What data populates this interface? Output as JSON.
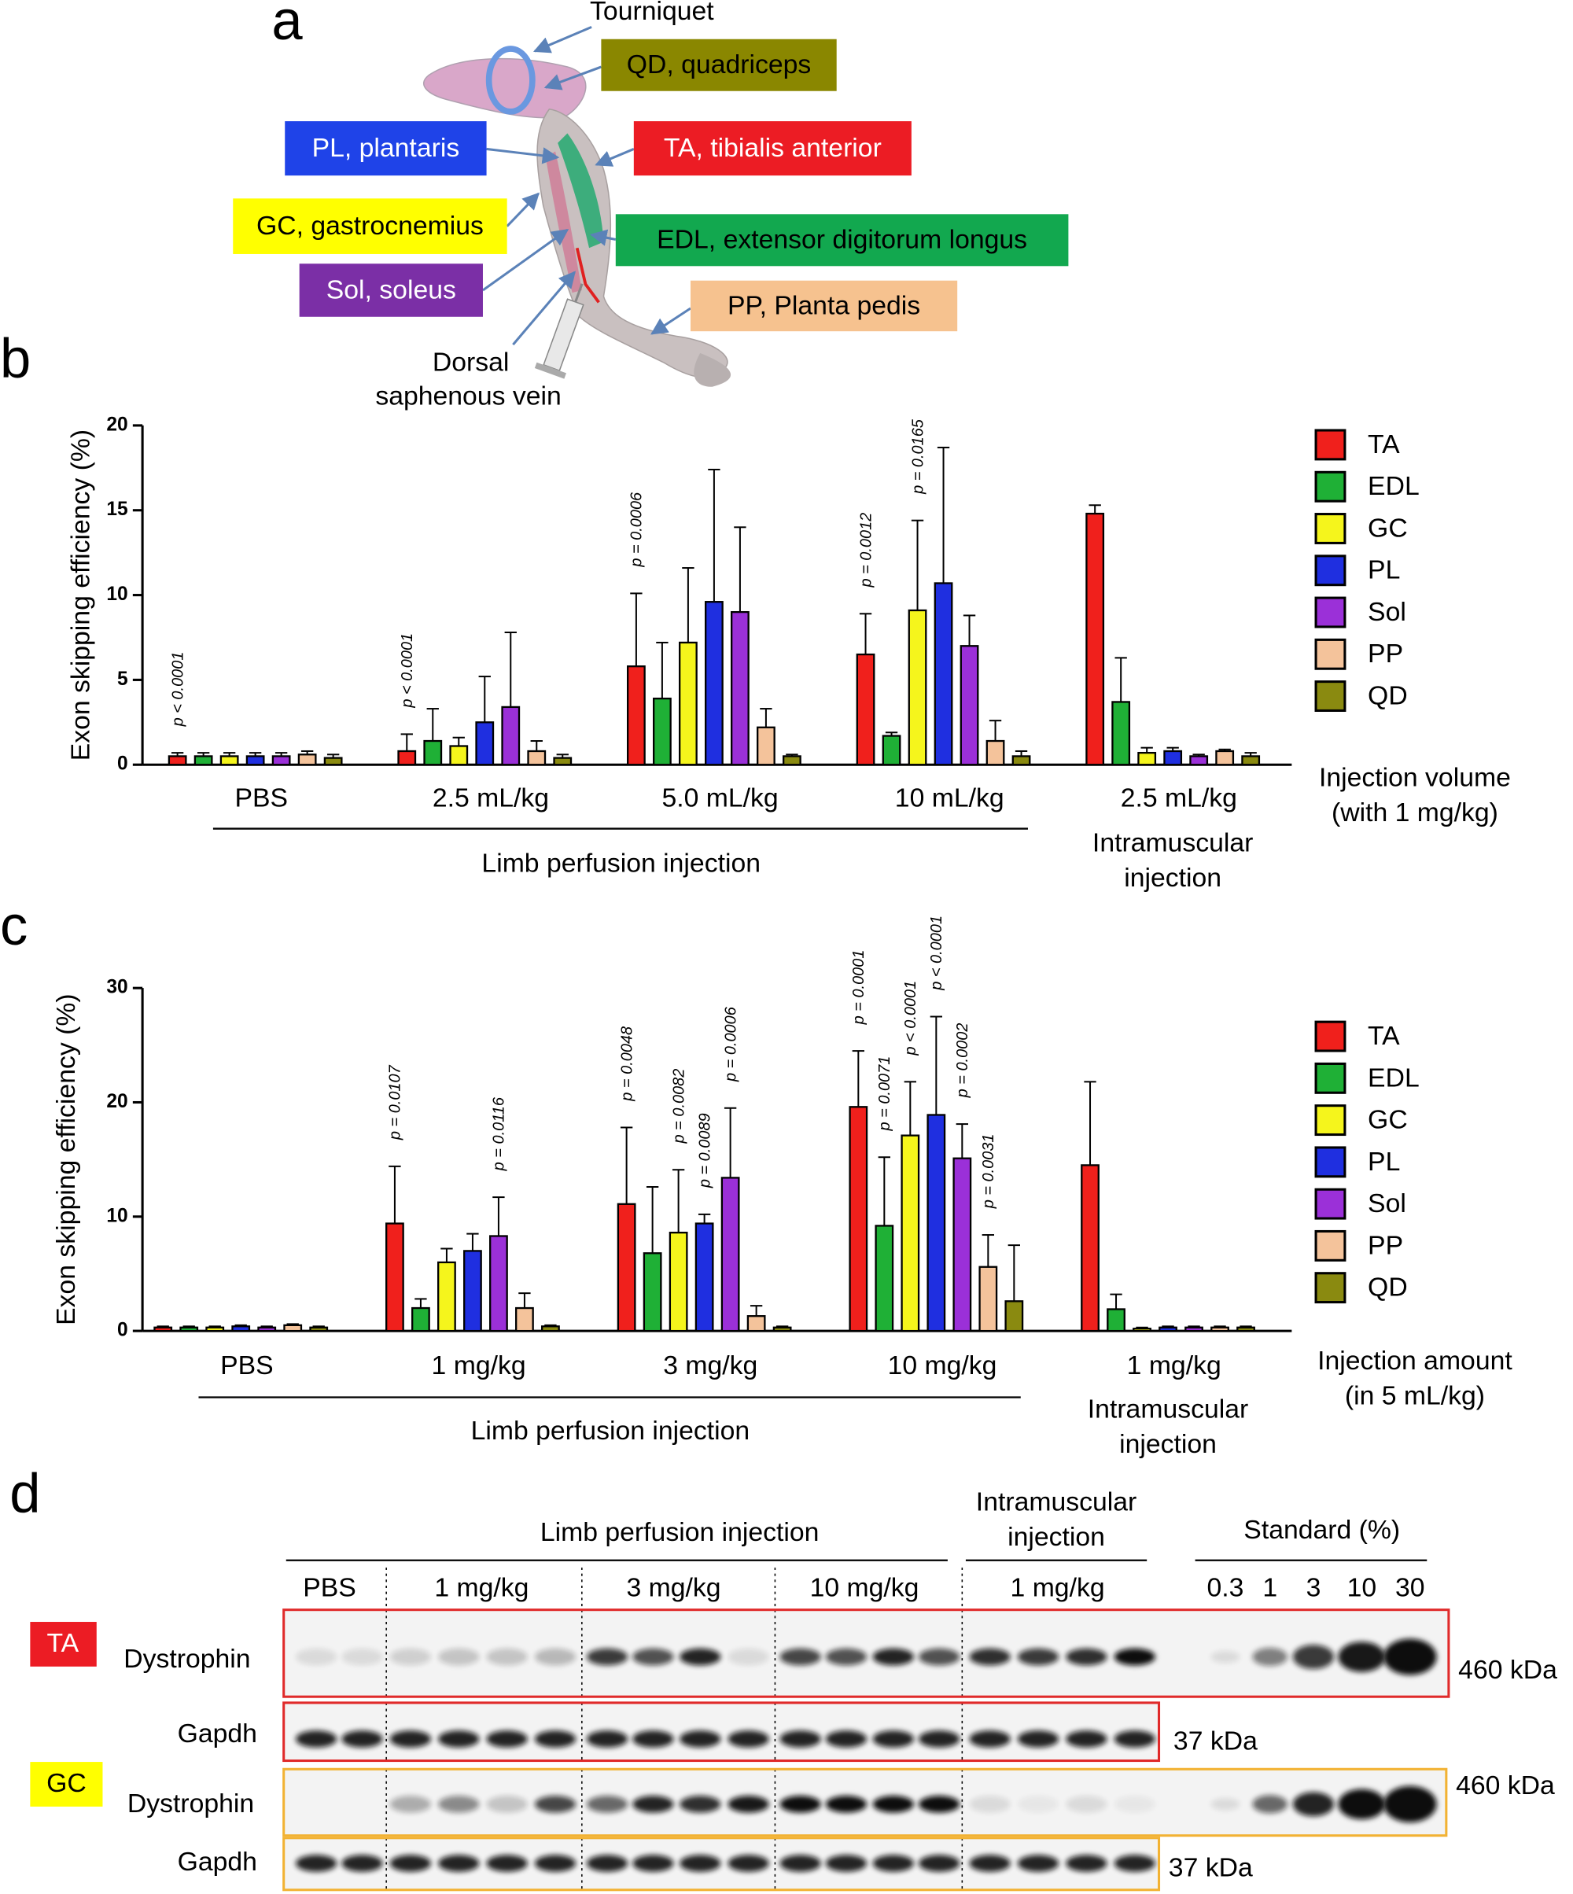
{
  "diagram": {
    "panel": "a",
    "tourniquet": "Tourniquet",
    "vein": [
      "Dorsal",
      "saphenous vein"
    ],
    "labels": [
      {
        "text": "QD, quadriceps",
        "color": "#8a8700",
        "text_color": "#000000"
      },
      {
        "text": "PL, plantaris",
        "color": "#1f43e8",
        "text_color": "#ffffff"
      },
      {
        "text": "TA, tibialis anterior",
        "color": "#ec1c24",
        "text_color": "#ffffff"
      },
      {
        "text": "GC, gastrocnemius",
        "color": "#ffff00",
        "text_color": "#000000"
      },
      {
        "text": "EDL, extensor digitorum longus",
        "color": "#12a84f",
        "text_color": "#000000"
      },
      {
        "text": "Sol, soleus",
        "color": "#7b2fa6",
        "text_color": "#ffffff"
      },
      {
        "text": "PP, Planta pedis",
        "color": "#f6c28f",
        "text_color": "#000000"
      }
    ]
  },
  "chart_data": [
    {
      "type": "bar",
      "panel": "b",
      "y_label": "Exon skipping efficiency (%)",
      "categories": [
        "PBS",
        "2.5 mL/kg",
        "5.0 mL/kg",
        "10 mL/kg",
        "2.5 mL/kg"
      ],
      "group_note": "Limb perfusion injection",
      "im_note": [
        "Intramuscular",
        "injection"
      ],
      "x_label": [
        "Injection volume",
        "(with 1 mg/kg)"
      ],
      "ylim": [
        0,
        20
      ],
      "yticks": [
        0,
        5,
        10,
        15,
        20
      ],
      "series": [
        {
          "name": "TA",
          "color": "#f0201c",
          "values": [
            0.5,
            0.8,
            5.8,
            6.5,
            14.8
          ],
          "errors": [
            0.2,
            1.0,
            4.3,
            2.4,
            0.5
          ],
          "p_labels": [
            "p < 0.0001",
            "p < 0.0001",
            "p = 0.0006",
            "p = 0.0012",
            null
          ]
        },
        {
          "name": "EDL",
          "color": "#1fb036",
          "values": [
            0.5,
            1.4,
            3.9,
            1.7,
            3.7
          ],
          "errors": [
            0.2,
            1.9,
            3.3,
            0.2,
            2.6
          ],
          "p_labels": [
            null,
            null,
            null,
            null,
            null
          ]
        },
        {
          "name": "GC",
          "color": "#f5f51c",
          "values": [
            0.5,
            1.1,
            7.2,
            9.1,
            0.7
          ],
          "errors": [
            0.2,
            0.5,
            4.4,
            5.3,
            0.3
          ],
          "p_labels": [
            null,
            null,
            null,
            "p = 0.0165",
            null
          ]
        },
        {
          "name": "PL",
          "color": "#1f2fe0",
          "values": [
            0.5,
            2.5,
            9.6,
            10.7,
            0.8
          ],
          "errors": [
            0.2,
            2.7,
            7.8,
            8.0,
            0.2
          ],
          "p_labels": [
            null,
            null,
            null,
            null,
            null
          ]
        },
        {
          "name": "Sol",
          "color": "#9b30d8",
          "values": [
            0.5,
            3.4,
            9.0,
            7.0,
            0.5
          ],
          "errors": [
            0.2,
            4.4,
            5.0,
            1.8,
            0.1
          ],
          "p_labels": [
            null,
            null,
            null,
            null,
            null
          ]
        },
        {
          "name": "PP",
          "color": "#f4c39b",
          "values": [
            0.6,
            0.8,
            2.2,
            1.4,
            0.8
          ],
          "errors": [
            0.2,
            0.6,
            1.1,
            1.2,
            0.1
          ],
          "p_labels": [
            null,
            null,
            null,
            null,
            null
          ]
        },
        {
          "name": "QD",
          "color": "#8a8a10",
          "values": [
            0.4,
            0.4,
            0.5,
            0.5,
            0.5
          ],
          "errors": [
            0.2,
            0.2,
            0.1,
            0.3,
            0.2
          ],
          "p_labels": [
            null,
            null,
            null,
            null,
            null
          ]
        }
      ]
    },
    {
      "type": "bar",
      "panel": "c",
      "y_label": "Exon skipping efficiency (%)",
      "categories": [
        "PBS",
        "1 mg/kg",
        "3 mg/kg",
        "10 mg/kg",
        "1 mg/kg"
      ],
      "group_note": "Limb perfusion injection",
      "im_note": [
        "Intramuscular",
        "injection"
      ],
      "x_label": [
        "Injection amount",
        "(in 5 mL/kg)"
      ],
      "ylim": [
        0,
        30
      ],
      "yticks": [
        0,
        10,
        20,
        30
      ],
      "series": [
        {
          "name": "TA",
          "color": "#f0201c",
          "values": [
            0.3,
            9.4,
            11.1,
            19.6,
            14.5
          ],
          "errors": [
            0.1,
            5.0,
            6.7,
            4.9,
            7.3
          ],
          "p_labels": [
            null,
            "p = 0.0107",
            "p = 0.0048",
            "p = 0.0001",
            null
          ]
        },
        {
          "name": "EDL",
          "color": "#1fb036",
          "values": [
            0.3,
            2.0,
            6.8,
            9.2,
            1.9
          ],
          "errors": [
            0.1,
            0.8,
            5.8,
            6.0,
            1.3
          ],
          "p_labels": [
            null,
            null,
            null,
            "p = 0.0071",
            null
          ]
        },
        {
          "name": "GC",
          "color": "#f5f51c",
          "values": [
            0.3,
            6.0,
            8.6,
            17.1,
            0.2
          ],
          "errors": [
            0.1,
            1.2,
            5.5,
            4.7,
            0.1
          ],
          "p_labels": [
            null,
            null,
            "p = 0.0082",
            "p < 0.0001",
            null
          ]
        },
        {
          "name": "PL",
          "color": "#1f2fe0",
          "values": [
            0.4,
            7.0,
            9.4,
            18.9,
            0.3
          ],
          "errors": [
            0.1,
            1.5,
            0.8,
            8.6,
            0.1
          ],
          "p_labels": [
            null,
            null,
            "p = 0.0089",
            "p < 0.0001",
            null
          ]
        },
        {
          "name": "Sol",
          "color": "#9b30d8",
          "values": [
            0.3,
            8.3,
            13.4,
            15.1,
            0.3
          ],
          "errors": [
            0.1,
            3.4,
            6.1,
            3.0,
            0.1
          ],
          "p_labels": [
            null,
            "p = 0.0116",
            "p = 0.0006",
            "p = 0.0002",
            null
          ]
        },
        {
          "name": "PP",
          "color": "#f4c39b",
          "values": [
            0.5,
            2.0,
            1.3,
            5.6,
            0.3
          ],
          "errors": [
            0.1,
            1.3,
            0.9,
            2.8,
            0.1
          ],
          "p_labels": [
            null,
            null,
            null,
            "p = 0.0031",
            null
          ]
        },
        {
          "name": "QD",
          "color": "#8a8a10",
          "values": [
            0.3,
            0.4,
            0.3,
            2.6,
            0.3
          ],
          "errors": [
            0.1,
            0.1,
            0.1,
            4.9,
            0.1
          ],
          "p_labels": [
            null,
            null,
            null,
            null,
            null
          ]
        }
      ]
    }
  ],
  "blot": {
    "panel": "d",
    "header": "Limb perfusion injection",
    "im_header": [
      "Intramuscular",
      "injection"
    ],
    "standard_header": "Standard (%)",
    "groups": [
      "PBS",
      "1 mg/kg",
      "3 mg/kg",
      "10 mg/kg",
      "1 mg/kg"
    ],
    "standards": [
      "0.3",
      "1",
      "3",
      "10",
      "30"
    ],
    "rows": [
      {
        "tissue": "TA",
        "protein": "Dystrophin",
        "size": "460 kDa"
      },
      {
        "protein": "Gapdh",
        "size": "37 kDa"
      },
      {
        "tissue": "GC",
        "protein": "Dystrophin",
        "size": "460 kDa"
      },
      {
        "protein": "Gapdh",
        "size": "37 kDa"
      }
    ]
  }
}
